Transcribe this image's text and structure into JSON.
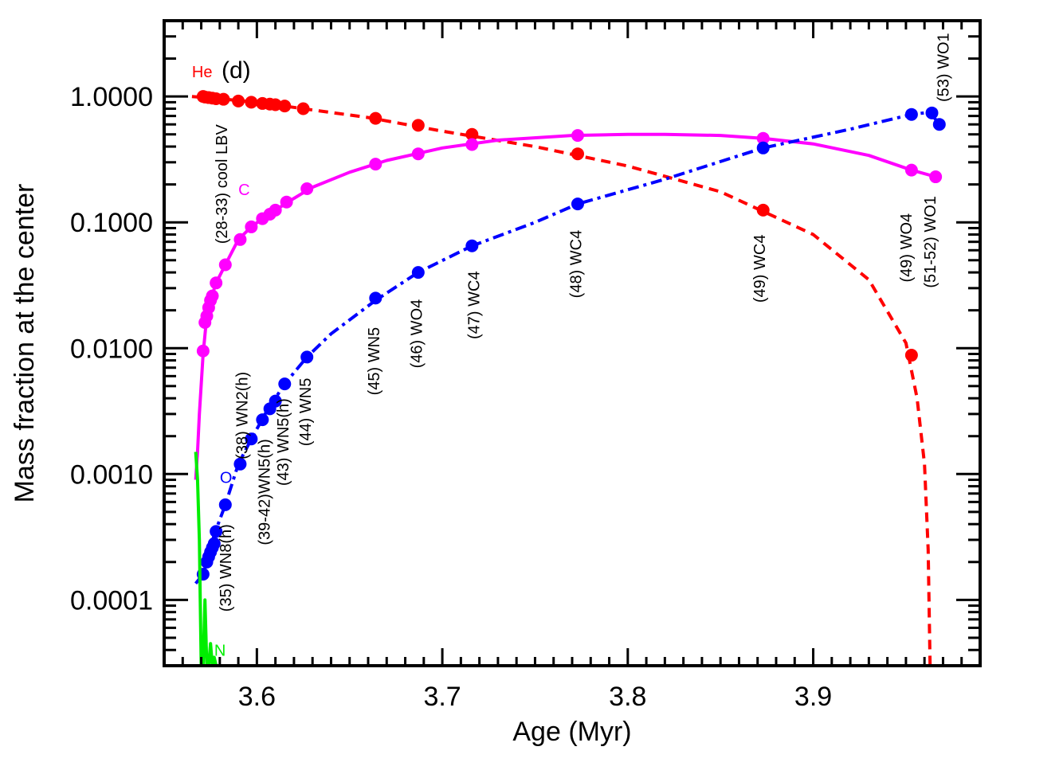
{
  "chart_data": {
    "type": "line",
    "panel_label": "(d)",
    "xlabel": "Age (Myr)",
    "ylabel": "Mass fraction at the center",
    "xlim": [
      3.55,
      3.99
    ],
    "ylim": [
      3e-05,
      4.0
    ],
    "yscale": "log",
    "x_ticks": [
      {
        "value": 3.6,
        "label": "3.6"
      },
      {
        "value": 3.7,
        "label": "3.7"
      },
      {
        "value": 3.8,
        "label": "3.8"
      },
      {
        "value": 3.9,
        "label": "3.9"
      }
    ],
    "y_ticks": [
      {
        "value": 0.0001,
        "label": "0.0001"
      },
      {
        "value": 0.001,
        "label": "0.0010"
      },
      {
        "value": 0.01,
        "label": "0.0100"
      },
      {
        "value": 0.1,
        "label": "0.1000"
      },
      {
        "value": 1.0,
        "label": "1.0000"
      }
    ],
    "series": [
      {
        "name": "He",
        "color": "#ff0000",
        "line_style": "dashed",
        "label_at": [
          3.565,
          1.42
        ],
        "curve": [
          [
            3.565,
            1.0
          ],
          [
            3.58,
            0.96
          ],
          [
            3.6,
            0.9
          ],
          [
            3.625,
            0.8
          ],
          [
            3.66,
            0.68
          ],
          [
            3.7,
            0.53
          ],
          [
            3.75,
            0.4
          ],
          [
            3.8,
            0.28
          ],
          [
            3.85,
            0.175
          ],
          [
            3.9,
            0.08
          ],
          [
            3.93,
            0.035
          ],
          [
            3.95,
            0.011
          ],
          [
            3.956,
            0.004
          ],
          [
            3.96,
            0.0012
          ],
          [
            3.962,
            0.00025
          ],
          [
            3.963,
            3e-05
          ]
        ],
        "markers": [
          [
            3.571,
            1.0
          ],
          [
            3.572,
            0.99
          ],
          [
            3.574,
            0.98
          ],
          [
            3.576,
            0.97
          ],
          [
            3.578,
            0.96
          ],
          [
            3.582,
            0.95
          ],
          [
            3.59,
            0.92
          ],
          [
            3.597,
            0.9
          ],
          [
            3.603,
            0.88
          ],
          [
            3.607,
            0.87
          ],
          [
            3.61,
            0.86
          ],
          [
            3.615,
            0.84
          ],
          [
            3.625,
            0.8
          ],
          [
            3.664,
            0.67
          ],
          [
            3.687,
            0.59
          ],
          [
            3.716,
            0.5
          ],
          [
            3.773,
            0.35
          ],
          [
            3.873,
            0.125
          ],
          [
            3.953,
            0.0088
          ]
        ]
      },
      {
        "name": "C",
        "color": "#ff00ff",
        "line_style": "solid",
        "label_at": [
          3.59,
          0.165
        ],
        "curve": [
          [
            3.567,
            0.0009
          ],
          [
            3.568,
            0.0015
          ],
          [
            3.569,
            0.003
          ],
          [
            3.571,
            0.009
          ],
          [
            3.573,
            0.018
          ],
          [
            3.575,
            0.024
          ],
          [
            3.578,
            0.033
          ],
          [
            3.583,
            0.046
          ],
          [
            3.59,
            0.073
          ],
          [
            3.597,
            0.092
          ],
          [
            3.603,
            0.107
          ],
          [
            3.61,
            0.125
          ],
          [
            3.62,
            0.155
          ],
          [
            3.63,
            0.19
          ],
          [
            3.65,
            0.25
          ],
          [
            3.67,
            0.31
          ],
          [
            3.7,
            0.39
          ],
          [
            3.73,
            0.45
          ],
          [
            3.77,
            0.49
          ],
          [
            3.8,
            0.5
          ],
          [
            3.82,
            0.5
          ],
          [
            3.85,
            0.49
          ],
          [
            3.873,
            0.465
          ],
          [
            3.9,
            0.42
          ],
          [
            3.93,
            0.34
          ],
          [
            3.953,
            0.26
          ],
          [
            3.966,
            0.23
          ]
        ],
        "markers": [
          [
            3.571,
            0.0095
          ],
          [
            3.572,
            0.016
          ],
          [
            3.573,
            0.018
          ],
          [
            3.574,
            0.021
          ],
          [
            3.575,
            0.024
          ],
          [
            3.576,
            0.026
          ],
          [
            3.578,
            0.033
          ],
          [
            3.583,
            0.046
          ],
          [
            3.591,
            0.073
          ],
          [
            3.597,
            0.092
          ],
          [
            3.603,
            0.107
          ],
          [
            3.607,
            0.116
          ],
          [
            3.61,
            0.125
          ],
          [
            3.616,
            0.145
          ],
          [
            3.627,
            0.185
          ],
          [
            3.664,
            0.29
          ],
          [
            3.687,
            0.35
          ],
          [
            3.716,
            0.415
          ],
          [
            3.773,
            0.49
          ],
          [
            3.873,
            0.465
          ],
          [
            3.953,
            0.26
          ],
          [
            3.966,
            0.23
          ]
        ]
      },
      {
        "name": "O",
        "color": "#0000ff",
        "line_style": "dash-dot",
        "label_at": [
          3.58,
          0.00085
        ],
        "curve": [
          [
            3.567,
            0.000135
          ],
          [
            3.571,
            0.00016
          ],
          [
            3.574,
            0.00022
          ],
          [
            3.577,
            0.00033
          ],
          [
            3.583,
            0.00057
          ],
          [
            3.59,
            0.0012
          ],
          [
            3.597,
            0.0019
          ],
          [
            3.605,
            0.0031
          ],
          [
            3.615,
            0.0052
          ],
          [
            3.627,
            0.0085
          ],
          [
            3.64,
            0.013
          ],
          [
            3.664,
            0.024
          ],
          [
            3.687,
            0.04
          ],
          [
            3.716,
            0.065
          ],
          [
            3.75,
            0.1
          ],
          [
            3.773,
            0.14
          ],
          [
            3.82,
            0.22
          ],
          [
            3.873,
            0.39
          ],
          [
            3.92,
            0.55
          ],
          [
            3.953,
            0.72
          ],
          [
            3.963,
            0.75
          ],
          [
            3.968,
            0.6
          ]
        ],
        "markers": [
          [
            3.571,
            0.00016
          ],
          [
            3.573,
            0.0002
          ],
          [
            3.574,
            0.00022
          ],
          [
            3.575,
            0.00024
          ],
          [
            3.576,
            0.00026
          ],
          [
            3.577,
            0.00028
          ],
          [
            3.578,
            0.00035
          ],
          [
            3.583,
            0.00057
          ],
          [
            3.591,
            0.0012
          ],
          [
            3.597,
            0.0019
          ],
          [
            3.603,
            0.0027
          ],
          [
            3.607,
            0.0033
          ],
          [
            3.61,
            0.0038
          ],
          [
            3.615,
            0.0052
          ],
          [
            3.627,
            0.0085
          ],
          [
            3.664,
            0.025
          ],
          [
            3.687,
            0.04
          ],
          [
            3.716,
            0.065
          ],
          [
            3.773,
            0.14
          ],
          [
            3.873,
            0.39
          ],
          [
            3.953,
            0.72
          ],
          [
            3.964,
            0.74
          ],
          [
            3.968,
            0.6
          ]
        ]
      },
      {
        "name": "N",
        "color": "#00ee00",
        "line_style": "solid",
        "label_at": [
          3.577,
          3.6e-05
        ],
        "curve": [
          [
            3.567,
            0.0015
          ],
          [
            3.568,
            0.0009
          ],
          [
            3.569,
            0.0003
          ],
          [
            3.57,
            3e-05
          ],
          [
            3.571,
            3e-05
          ],
          [
            3.572,
            0.0001
          ],
          [
            3.573,
            3e-05
          ],
          [
            3.574,
            3e-05
          ],
          [
            3.575,
            4.5e-05
          ],
          [
            3.576,
            3e-05
          ],
          [
            3.577,
            3.5e-05
          ],
          [
            3.578,
            3e-05
          ]
        ],
        "markers": []
      }
    ],
    "annotations": [
      {
        "text": "(28-33) cool LBV",
        "x": 3.584,
        "y_top": 0.6
      },
      {
        "text": "(35) WN8(h)",
        "x": 3.586,
        "y_top": 0.0004
      },
      {
        "text": "(38) WN2(h)",
        "x": 3.595,
        "y_top": 0.0065
      },
      {
        "text": "(39-42)WN5(h)",
        "x": 3.607,
        "y_top": 0.0019
      },
      {
        "text": "(43) WN5(h)",
        "x": 3.617,
        "y_top": 0.004
      },
      {
        "text": "(44) WN5",
        "x": 3.629,
        "y_top": 0.0058
      },
      {
        "text": "(45) WN5",
        "x": 3.666,
        "y_top": 0.0147
      },
      {
        "text": "(46) WO4",
        "x": 3.689,
        "y_top": 0.0245
      },
      {
        "text": "(47) WC4",
        "x": 3.72,
        "y_top": 0.041
      },
      {
        "text": "(48) WC4",
        "x": 3.775,
        "y_top": 0.087
      },
      {
        "text": "(49) WC4",
        "x": 3.874,
        "y_top": 0.08
      },
      {
        "text": "(49) WO4",
        "x": 3.953,
        "y_top": 0.118
      },
      {
        "text": "(51-52) WO1",
        "x": 3.966,
        "y_top": 0.162
      },
      {
        "text": "(53) WO1",
        "x": 3.973,
        "y_top": 3.2
      }
    ]
  }
}
